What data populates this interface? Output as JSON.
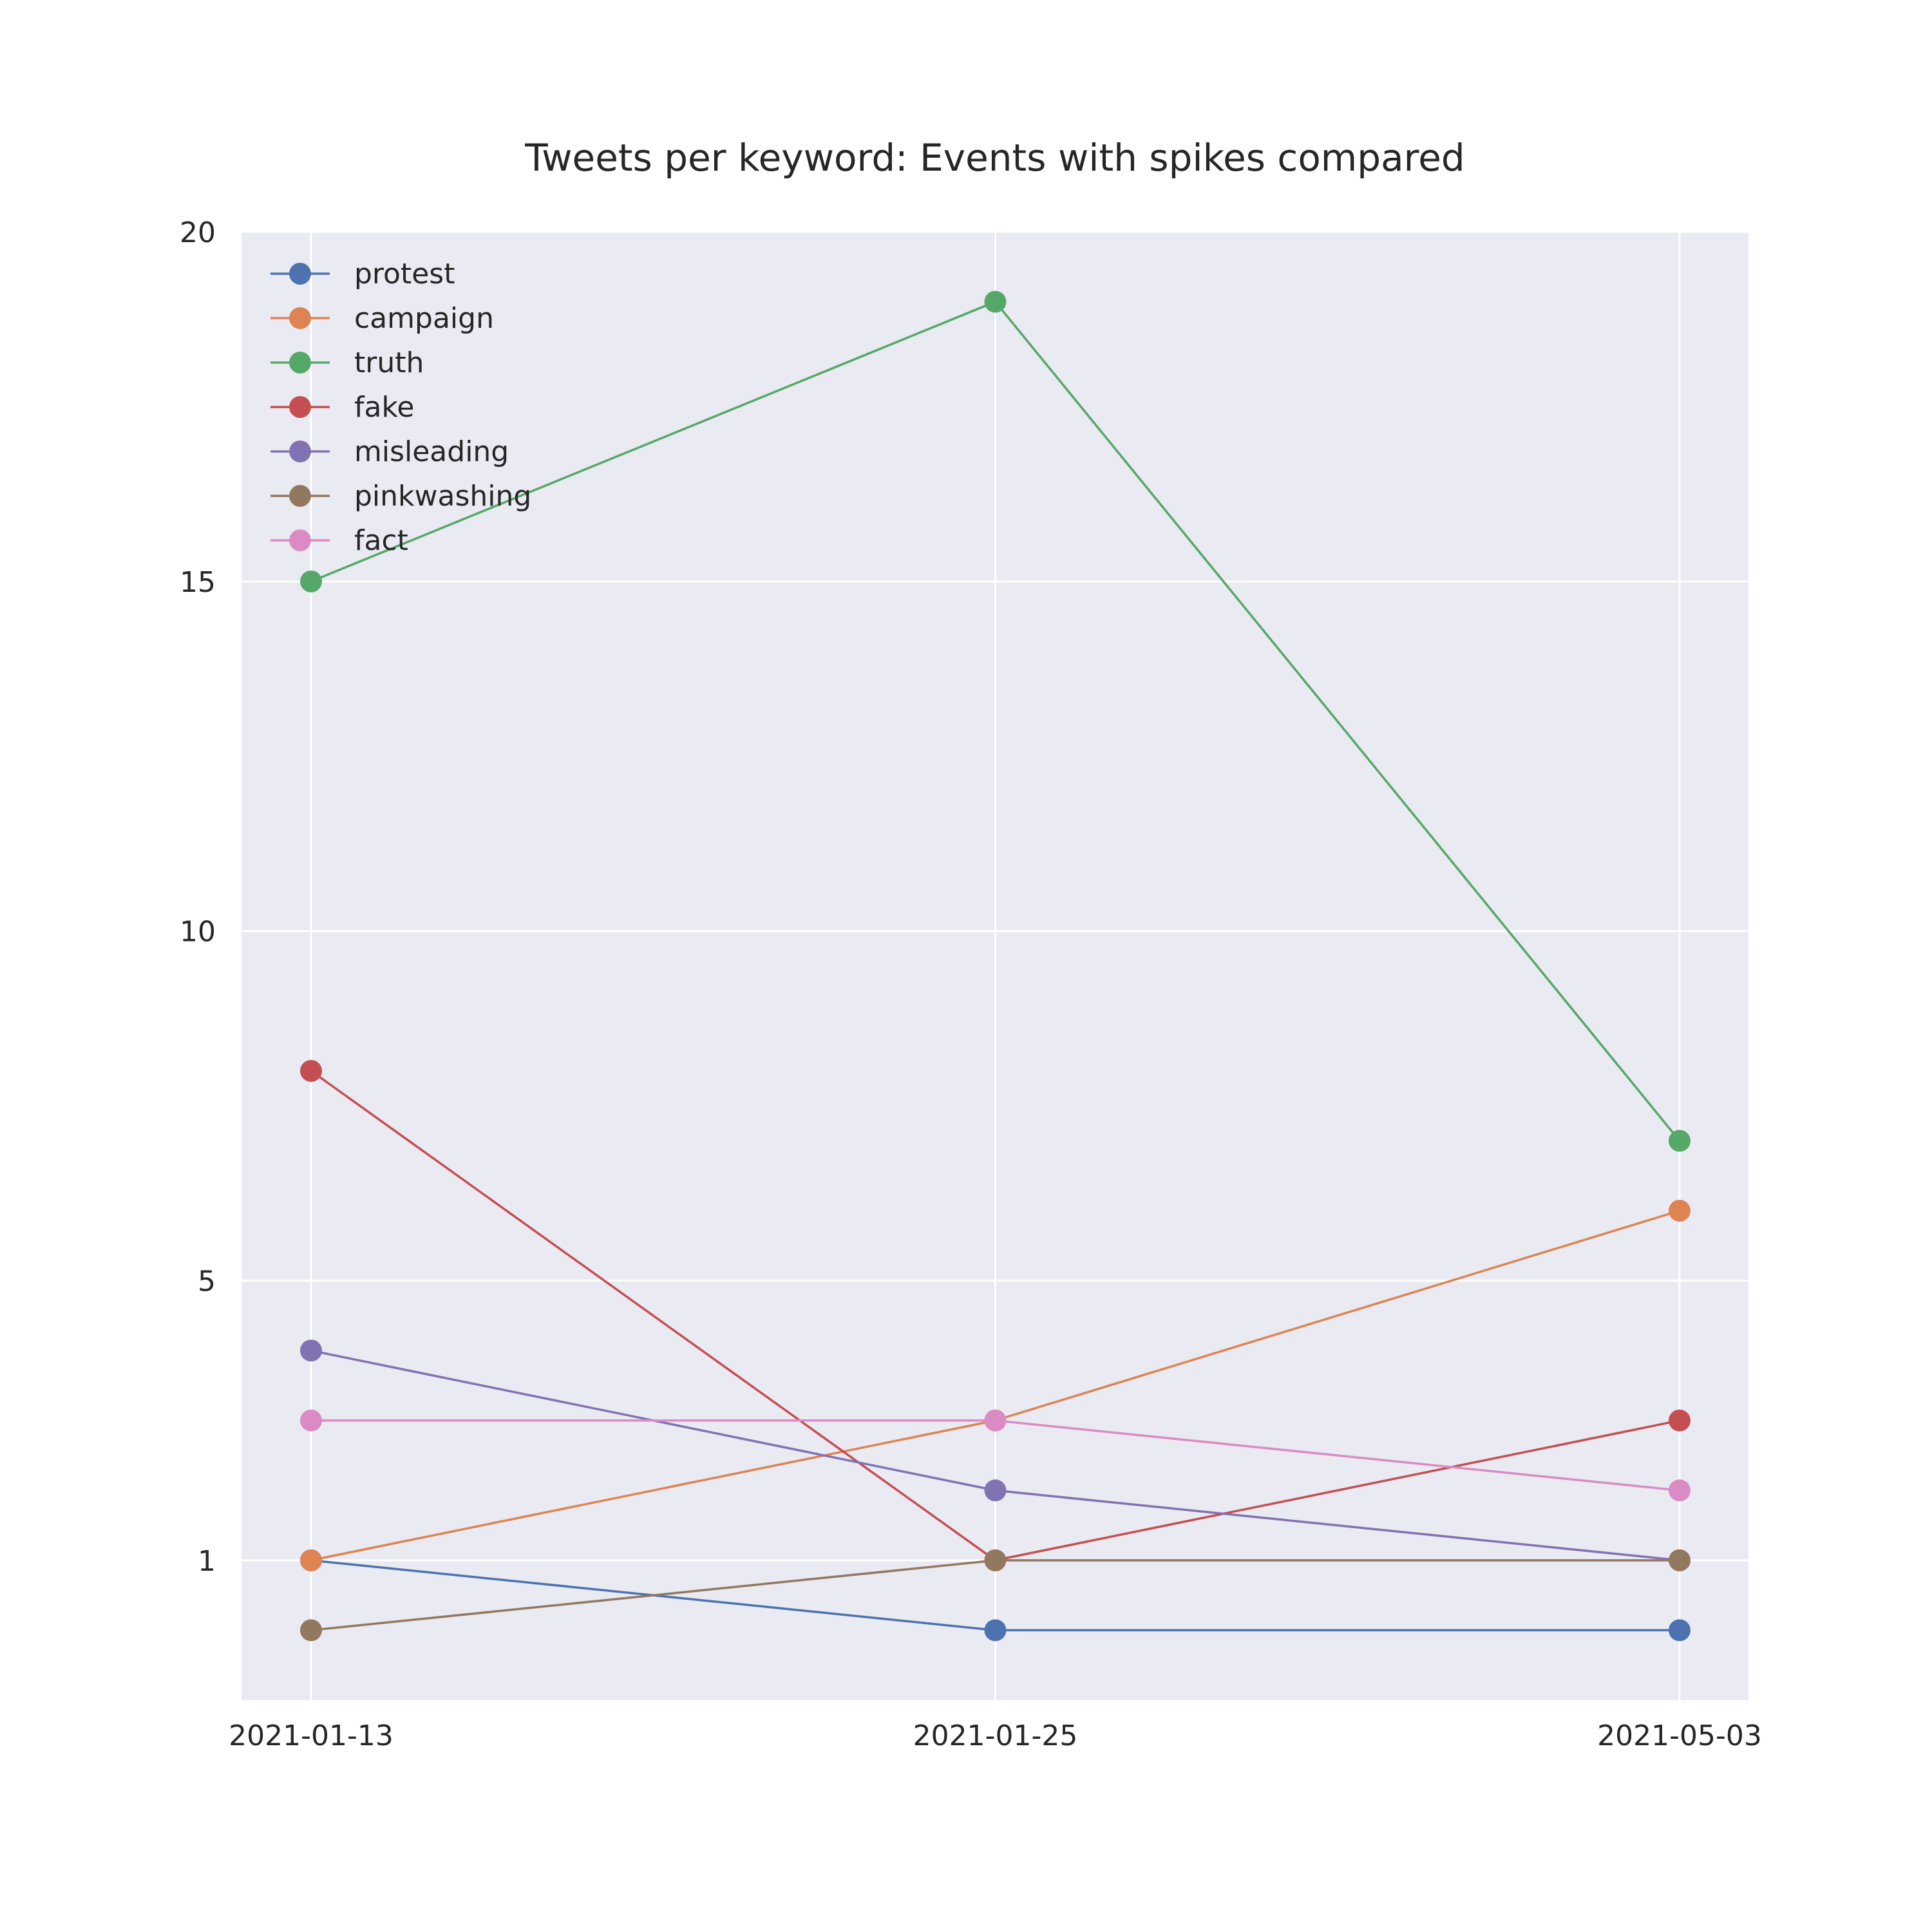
{
  "chart_data": {
    "type": "line",
    "title": "Tweets per keyword: Events with spikes compared",
    "xlabel": "",
    "ylabel": "",
    "x": [
      "2021-01-13",
      "2021-01-25",
      "2021-05-03"
    ],
    "yticks": [
      1,
      5,
      10,
      15,
      20
    ],
    "ylim": [
      -1,
      20
    ],
    "grid": true,
    "legend_position": "top-left",
    "series": [
      {
        "name": "protest",
        "color": "#4c72b0",
        "values": [
          1,
          0,
          0
        ]
      },
      {
        "name": "campaign",
        "color": "#dd8452",
        "values": [
          1,
          3,
          6
        ]
      },
      {
        "name": "truth",
        "color": "#55a868",
        "values": [
          15,
          19,
          7
        ]
      },
      {
        "name": "fake",
        "color": "#c44e52",
        "values": [
          8,
          1,
          3
        ]
      },
      {
        "name": "misleading",
        "color": "#8172b3",
        "values": [
          4,
          2,
          1
        ]
      },
      {
        "name": "pinkwashing",
        "color": "#937860",
        "values": [
          0,
          1,
          1
        ]
      },
      {
        "name": "fact",
        "color": "#da8bc3",
        "values": [
          3,
          3,
          2
        ]
      }
    ]
  }
}
